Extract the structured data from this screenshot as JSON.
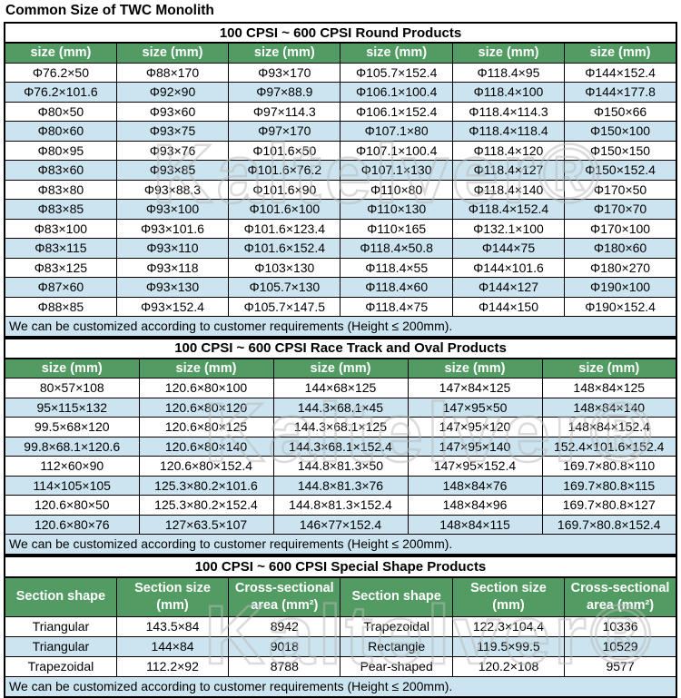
{
  "title": "Common Size of TWC Monolith",
  "watermark": "Kaltelver®",
  "colors": {
    "header_green": "#529b63",
    "row_alt_blue": "#cbe4ef",
    "note_blue": "#cbe4ef",
    "border": "#000000"
  },
  "tables": {
    "round": {
      "section_title": "100 CPSI ~ 600 CPSI Round Products",
      "headers": [
        "size (mm)",
        "size (mm)",
        "size (mm)",
        "size (mm)",
        "size (mm)",
        "size (mm)"
      ],
      "rows": [
        [
          "Φ76.2×50",
          "Φ88×170",
          "Φ93×170",
          "Φ105.7×152.4",
          "Φ118.4×95",
          "Φ144×152.4"
        ],
        [
          "Φ76.2×101.6",
          "Φ92×90",
          "Φ97×88.9",
          "Φ106.1×100.4",
          "Φ118.4×100",
          "Φ144×177.8"
        ],
        [
          "Φ80×50",
          "Φ93×60",
          "Φ97×114.3",
          "Φ106.1×152.4",
          "Φ118.4×114.3",
          "Φ150×66"
        ],
        [
          "Φ80×60",
          "Φ93×75",
          "Φ97×170",
          "Φ107.1×80",
          "Φ118.4×118.4",
          "Φ150×100"
        ],
        [
          "Φ80×95",
          "Φ93×76",
          "Φ101.6×50",
          "Φ107.1×100.4",
          "Φ118.4×120",
          "Φ150×150"
        ],
        [
          "Φ83×60",
          "Φ93×85",
          "Φ101.6×76.2",
          "Φ107.1×130",
          "Φ118.4×127",
          "Φ150×152.4"
        ],
        [
          "Φ83×80",
          "Φ93×88.3",
          "Φ101.6×90",
          "Φ110×80",
          "Φ118.4×140",
          "Φ170×50"
        ],
        [
          "Φ83×85",
          "Φ93×100",
          "Φ101.6×100",
          "Φ110×130",
          "Φ118.4×152.4",
          "Φ170×70"
        ],
        [
          "Φ83×100",
          "Φ93×101.6",
          "Φ101.6×123.4",
          "Φ110×165",
          "Φ132.1×100",
          "Φ170×100"
        ],
        [
          "Φ83×115",
          "Φ93×110",
          "Φ101.6×152.4",
          "Φ118.4×50.8",
          "Φ144×75",
          "Φ180×60"
        ],
        [
          "Φ83×125",
          "Φ93×118",
          "Φ103×130",
          "Φ118.4×55",
          "Φ144×101.6",
          "Φ180×270"
        ],
        [
          "Φ87×60",
          "Φ93×130",
          "Φ105.7×130",
          "Φ118.4×60",
          "Φ144×127",
          "Φ190×100"
        ],
        [
          "Φ88×85",
          "Φ93×152.4",
          "Φ105.7×147.5",
          "Φ118.4×75",
          "Φ144×150",
          "Φ190×152.4"
        ]
      ],
      "note": "We can be customized according to customer requirements (Height ≤ 200mm)."
    },
    "racetrack": {
      "section_title": "100 CPSI ~ 600 CPSI Race Track and Oval Products",
      "headers": [
        "size (mm)",
        "size (mm)",
        "size (mm)",
        "size (mm)",
        "size (mm)"
      ],
      "rows": [
        [
          "80×57×108",
          "120.6×80×100",
          "144×68×125",
          "147×84×125",
          "148×84×125"
        ],
        [
          "95×115×132",
          "120.6×80×120",
          "144.3×68.1×45",
          "147×95×50",
          "148×84×140"
        ],
        [
          "99.5×68×120",
          "120.6×80×125",
          "144.3×68.1×125",
          "147×95×120",
          "148×84×152.4"
        ],
        [
          "99.8×68.1×120.6",
          "120.6×80×140",
          "144.3×68.1×152.4",
          "147×95×140",
          "152.4×101.6×152.4"
        ],
        [
          "112×60×90",
          "120.6×80×152.4",
          "144.8×81.3×50",
          "147×95×152.4",
          "169.7×80.8×110"
        ],
        [
          "114×105×105",
          "125.3×80.2×101.6",
          "144.8×81.3×76",
          "148×84×76",
          "169.7×80.8×115"
        ],
        [
          "120.6×80×50",
          "125.3×80.2×152.4",
          "144.8×81.3×152.4",
          "148×84×96",
          "169.7×80.8×127"
        ],
        [
          "120.6×80×76",
          "127×63.5×107",
          "146×77×152.4",
          "148×84×115",
          "169.7×80.8×152.4"
        ]
      ],
      "note": "We can be customized according to customer requirements (Height ≤ 200mm)."
    },
    "special": {
      "section_title": "100 CPSI ~ 600 CPSI Special Shape Products",
      "headers": [
        "Section shape",
        "Section size (mm)",
        "Cross-sectional area (mm²)",
        "Section shape",
        "Section size (mm)",
        "Cross-sectional area (mm²)"
      ],
      "rows": [
        [
          "Triangular",
          "143.5×84",
          "8942",
          "Trapezoidal",
          "122.3×104.4",
          "10336"
        ],
        [
          "Triangular",
          "144×84",
          "9018",
          "Rectangle",
          "119.5×99.5",
          "10529"
        ],
        [
          "Trapezoidal",
          "112.2×92",
          "8788",
          "Pear-shaped",
          "120.2×108",
          "9577"
        ]
      ],
      "note": "We can be customized according to customer requirements (Height ≤ 200mm)."
    }
  }
}
